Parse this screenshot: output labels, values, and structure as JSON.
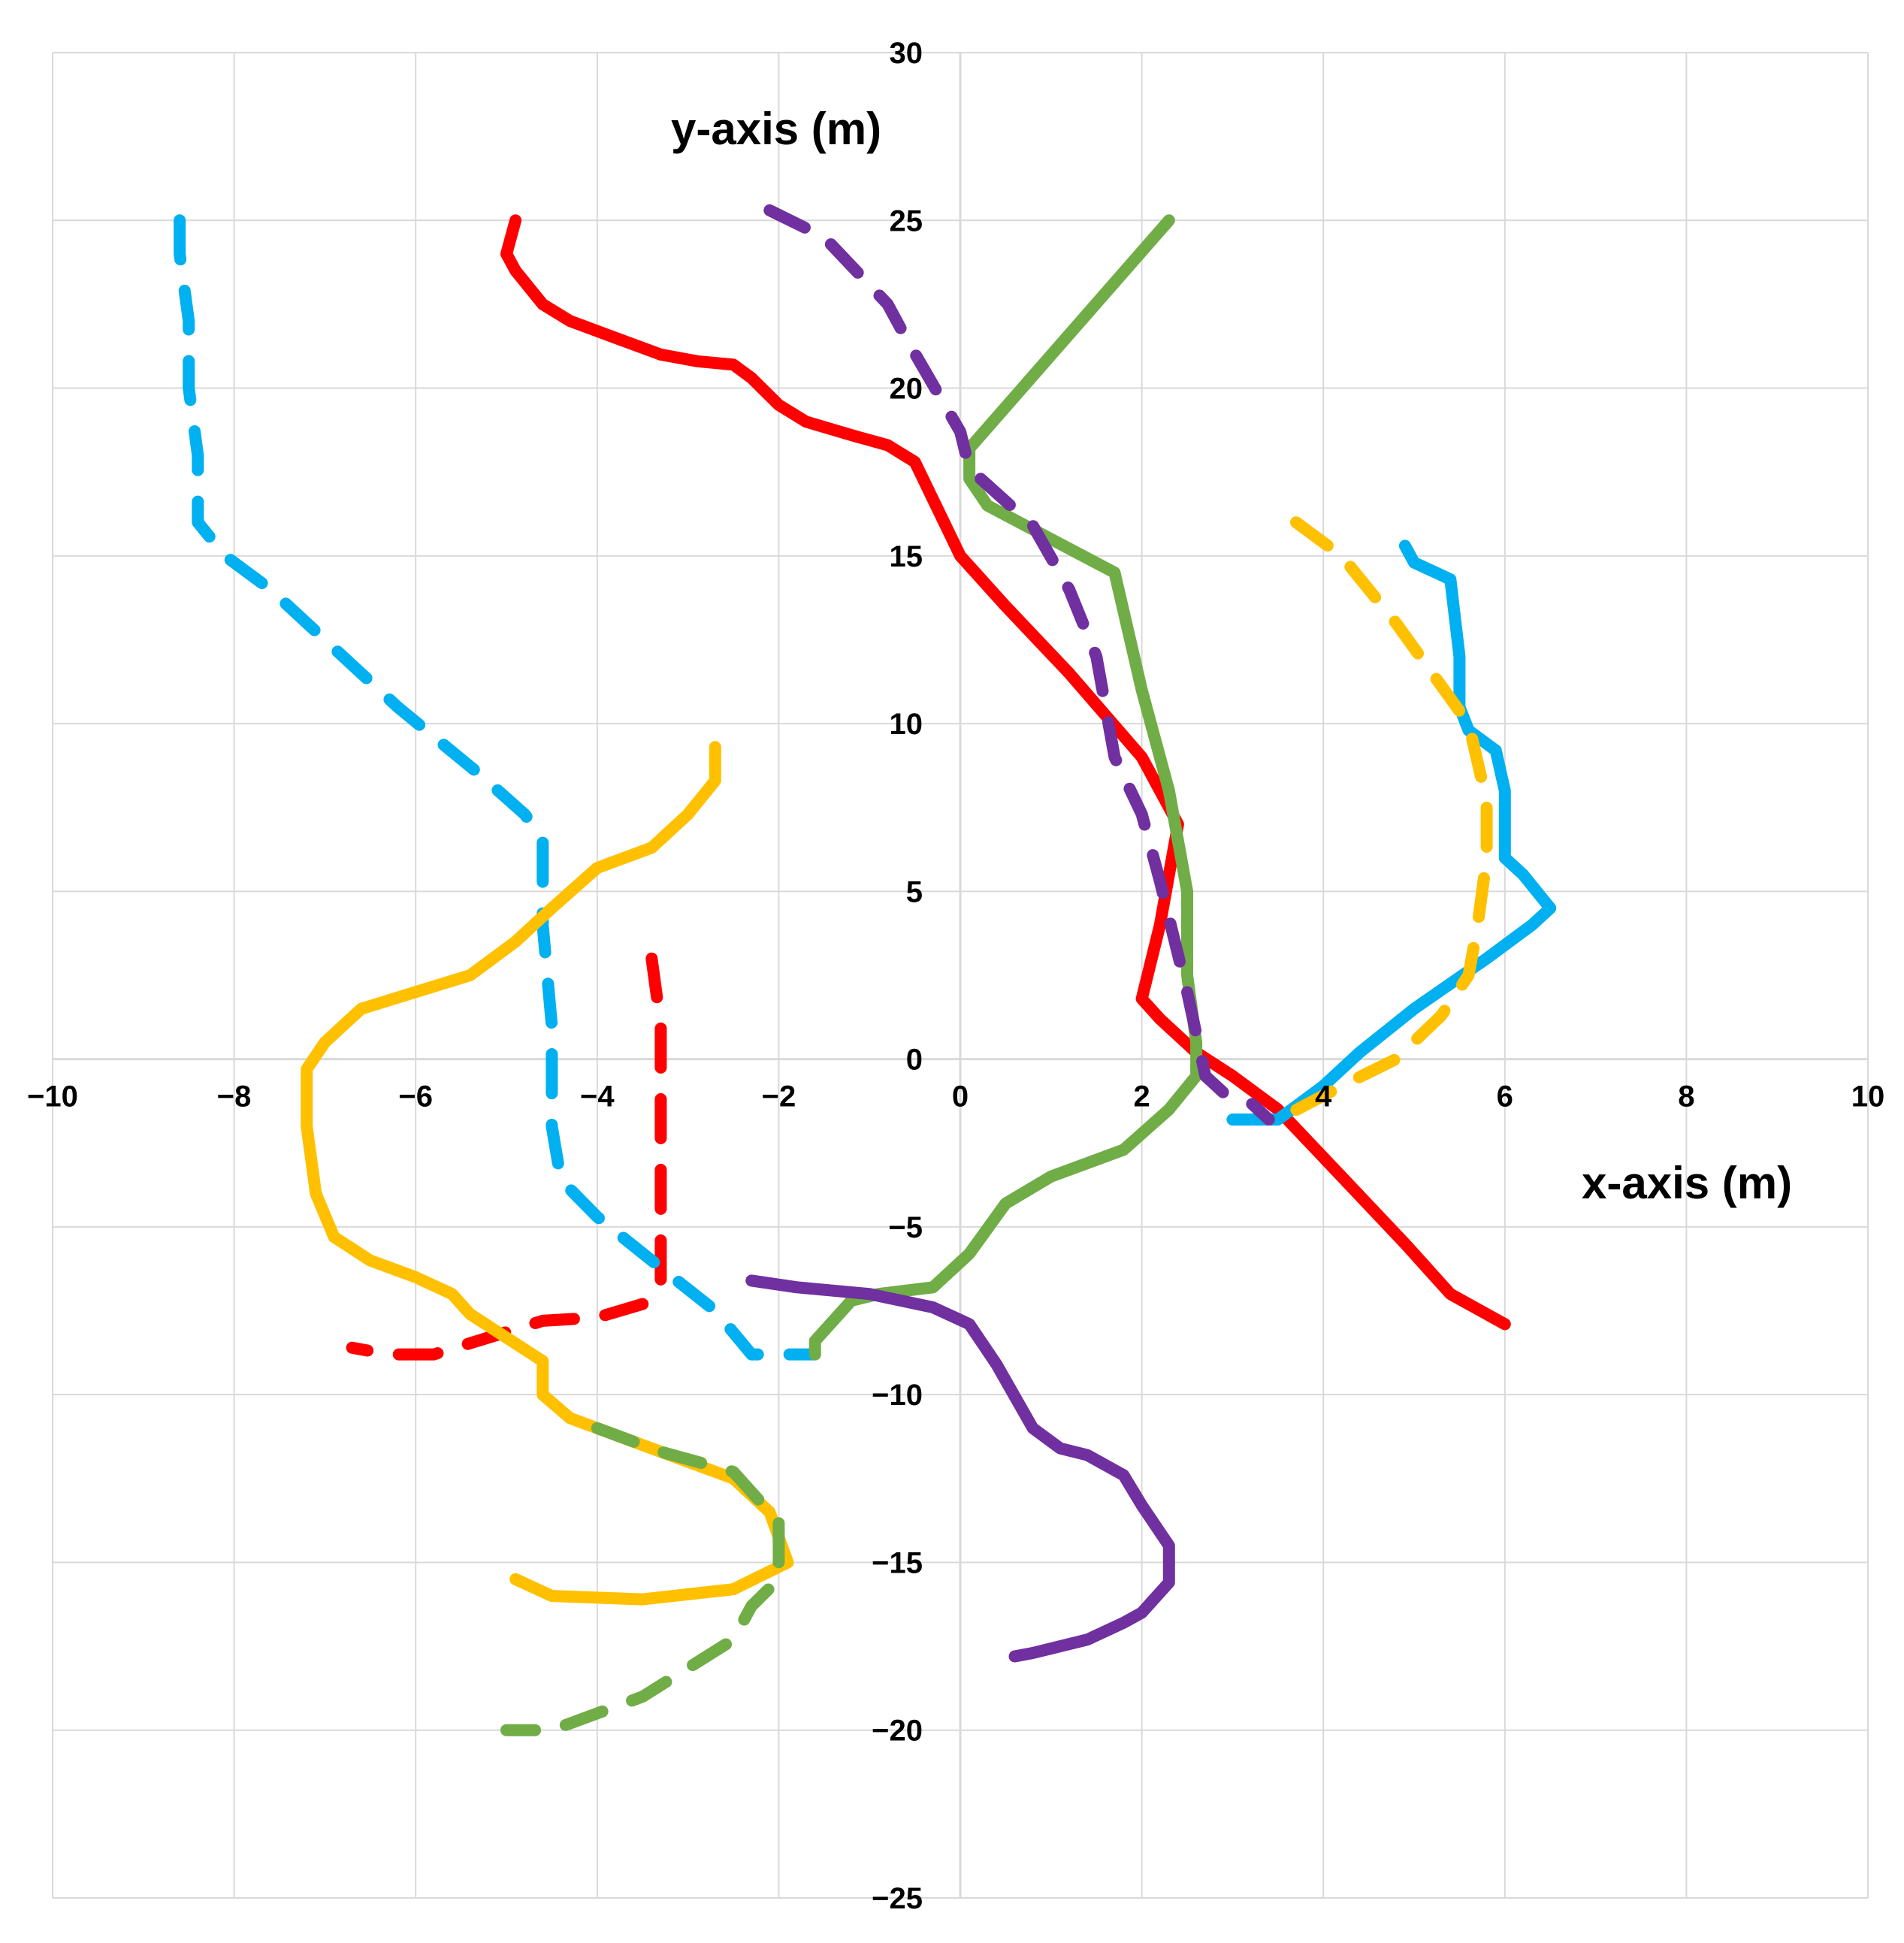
{
  "chart_data": {
    "type": "line",
    "xlabel": "x-axis (m)",
    "ylabel": "y-axis (m)",
    "xlim": [
      -10,
      10
    ],
    "ylim": [
      -25,
      30
    ],
    "x_ticks": [
      -10,
      -8,
      -6,
      -4,
      -2,
      0,
      2,
      4,
      6,
      8,
      10
    ],
    "y_ticks": [
      30,
      25,
      20,
      15,
      10,
      5,
      0,
      -5,
      -10,
      -15,
      -20,
      -25
    ],
    "x_tick_labels": [
      "−10",
      "−8",
      "−6",
      "−4",
      "−2",
      "0",
      "2",
      "4",
      "6",
      "8",
      "10"
    ],
    "y_tick_labels": [
      "30",
      "25",
      "20",
      "15",
      "10",
      "5",
      "0",
      "−5",
      "−10",
      "−15",
      "−20",
      "−25"
    ],
    "grid": true,
    "series": [
      {
        "color": "#ff0000",
        "style": "solid",
        "points": [
          [
            -4.9,
            25
          ],
          [
            -5,
            24
          ],
          [
            -4.9,
            23.5
          ],
          [
            -4.6,
            22.5
          ],
          [
            -4.3,
            22
          ],
          [
            -3.8,
            21.5
          ],
          [
            -3.3,
            21
          ],
          [
            -2.9,
            20.8
          ],
          [
            -2.5,
            20.7
          ],
          [
            -2.3,
            20.3
          ],
          [
            -2.0,
            19.5
          ],
          [
            -1.7,
            19
          ],
          [
            -1.2,
            18.6
          ],
          [
            -0.8,
            18.3
          ],
          [
            -0.5,
            17.8
          ],
          [
            0,
            15
          ],
          [
            0.5,
            13.5
          ],
          [
            1.2,
            11.5
          ],
          [
            2.0,
            9.0
          ],
          [
            2.4,
            7.0
          ],
          [
            2.3,
            5.5
          ],
          [
            2.2,
            4.0
          ],
          [
            2.0,
            1.8
          ],
          [
            2.2,
            1.2
          ],
          [
            2.6,
            0.2
          ],
          [
            3.0,
            -0.5
          ],
          [
            3.5,
            -1.5
          ],
          [
            4.2,
            -3.5
          ],
          [
            4.9,
            -5.5
          ],
          [
            5.4,
            -7.0
          ],
          [
            6.0,
            -7.9
          ]
        ]
      },
      {
        "color": "#ff0000",
        "style": "dashed",
        "points": [
          [
            -3.4,
            3
          ],
          [
            -3.3,
            1
          ],
          [
            -3.3,
            -1
          ],
          [
            -3.3,
            -3.5
          ],
          [
            -3.3,
            -5.5
          ],
          [
            -3.3,
            -6.7
          ],
          [
            -3.5,
            -7.3
          ],
          [
            -4.0,
            -7.7
          ],
          [
            -4.6,
            -7.8
          ],
          [
            -5.2,
            -8.3
          ],
          [
            -5.8,
            -8.8
          ],
          [
            -6.3,
            -8.8
          ],
          [
            -6.7,
            -8.6
          ]
        ]
      },
      {
        "color": "#00b0f0",
        "style": "dashed",
        "points": [
          [
            -8.6,
            25
          ],
          [
            -8.6,
            24
          ],
          [
            -8.5,
            22
          ],
          [
            -8.5,
            20
          ],
          [
            -8.4,
            18
          ],
          [
            -8.4,
            16
          ],
          [
            -8.1,
            15
          ],
          [
            -7.6,
            14
          ],
          [
            -7.0,
            12.5
          ],
          [
            -6.2,
            10.5
          ],
          [
            -5.3,
            8.5
          ],
          [
            -4.8,
            7.3
          ],
          [
            -4.6,
            6.6
          ],
          [
            -4.6,
            4
          ],
          [
            -4.5,
            1
          ],
          [
            -4.5,
            -2
          ],
          [
            -4.4,
            -3.6
          ],
          [
            -4.0,
            -4.7
          ],
          [
            -3.4,
            -6.0
          ],
          [
            -2.7,
            -7.5
          ],
          [
            -2.3,
            -8.8
          ],
          [
            -2.0,
            -8.8
          ],
          [
            -1.6,
            -8.8
          ]
        ]
      },
      {
        "color": "#00b0f0",
        "style": "solid",
        "points": [
          [
            4.9,
            15.3
          ],
          [
            5.0,
            14.8
          ],
          [
            5.4,
            14.3
          ],
          [
            5.5,
            12.0
          ],
          [
            5.5,
            10.5
          ],
          [
            5.6,
            9.8
          ],
          [
            5.9,
            9.2
          ],
          [
            6.0,
            8.0
          ],
          [
            6.0,
            6.0
          ],
          [
            6.2,
            5.5
          ],
          [
            6.5,
            4.5
          ],
          [
            6.3,
            4.0
          ],
          [
            5.8,
            3.0
          ],
          [
            5.0,
            1.5
          ],
          [
            4.4,
            0.2
          ],
          [
            4.0,
            -0.8
          ],
          [
            3.5,
            -1.8
          ],
          [
            3.0,
            -1.8
          ]
        ]
      },
      {
        "color": "#ffc000",
        "style": "solid",
        "points": [
          [
            -2.7,
            9.3
          ],
          [
            -2.7,
            8.3
          ],
          [
            -3.0,
            7.3
          ],
          [
            -3.4,
            6.3
          ],
          [
            -4.0,
            5.7
          ],
          [
            -4.5,
            4.5
          ],
          [
            -4.9,
            3.5
          ],
          [
            -5.4,
            2.5
          ],
          [
            -6.0,
            2.0
          ],
          [
            -6.6,
            1.5
          ],
          [
            -7.0,
            0.5
          ],
          [
            -7.2,
            -0.3
          ],
          [
            -7.2,
            -2.0
          ],
          [
            -7.1,
            -4.0
          ],
          [
            -6.9,
            -5.3
          ],
          [
            -6.5,
            -6.0
          ],
          [
            -6.0,
            -6.5
          ],
          [
            -5.6,
            -7.0
          ],
          [
            -5.4,
            -7.6
          ],
          [
            -5.0,
            -8.3
          ],
          [
            -4.6,
            -9.0
          ],
          [
            -4.6,
            -10.0
          ],
          [
            -4.3,
            -10.7
          ],
          [
            -3.5,
            -11.5
          ],
          [
            -2.5,
            -12.5
          ],
          [
            -2.1,
            -13.5
          ],
          [
            -1.9,
            -15.0
          ],
          [
            -2.5,
            -15.8
          ],
          [
            -3.5,
            -16.1
          ],
          [
            -4.5,
            -16.0
          ],
          [
            -4.9,
            -15.5
          ]
        ]
      },
      {
        "color": "#ffc000",
        "style": "dashed",
        "points": [
          [
            3.7,
            16
          ],
          [
            4.2,
            15
          ],
          [
            4.8,
            13.0
          ],
          [
            5.6,
            10.0
          ],
          [
            5.8,
            7.7
          ],
          [
            5.8,
            6.0
          ],
          [
            5.7,
            4.0
          ],
          [
            5.6,
            2.5
          ],
          [
            5.3,
            1.3
          ],
          [
            4.8,
            0.0
          ],
          [
            4.2,
            -0.8
          ],
          [
            3.5,
            -1.8
          ]
        ]
      },
      {
        "color": "#70ad47",
        "style": "solid",
        "points": [
          [
            2.3,
            25
          ],
          [
            0.1,
            18.2
          ],
          [
            0.1,
            17.3
          ],
          [
            0.3,
            16.5
          ],
          [
            1.0,
            15.5
          ],
          [
            1.7,
            14.5
          ],
          [
            2.0,
            11.0
          ],
          [
            2.3,
            8.0
          ],
          [
            2.5,
            5.0
          ],
          [
            2.5,
            2.5
          ],
          [
            2.6,
            0.5
          ],
          [
            2.6,
            -0.5
          ],
          [
            2.3,
            -1.5
          ],
          [
            1.8,
            -2.7
          ],
          [
            1.0,
            -3.5
          ],
          [
            0.5,
            -4.3
          ],
          [
            0.1,
            -5.8
          ],
          [
            -0.3,
            -6.8
          ],
          [
            -0.9,
            -7.0
          ],
          [
            -1.2,
            -7.2
          ],
          [
            -1.6,
            -8.4
          ],
          [
            -1.6,
            -8.8
          ]
        ]
      },
      {
        "color": "#70ad47",
        "style": "dashed",
        "points": [
          [
            -4.0,
            -11.0
          ],
          [
            -3.3,
            -11.7
          ],
          [
            -2.5,
            -12.3
          ],
          [
            -2.0,
            -13.8
          ],
          [
            -2.0,
            -15.5
          ],
          [
            -2.3,
            -16.3
          ],
          [
            -2.5,
            -17.3
          ],
          [
            -3.5,
            -19.0
          ],
          [
            -4.0,
            -19.5
          ],
          [
            -4.5,
            -20.0
          ],
          [
            -5.0,
            -20.0
          ]
        ]
      },
      {
        "color": "#7030a0",
        "style": "dashed",
        "points": [
          [
            -2.1,
            25.3
          ],
          [
            -1.5,
            24.5
          ],
          [
            -0.8,
            22.5
          ],
          [
            -0.6,
            21.5
          ],
          [
            0.0,
            18.7
          ],
          [
            0.1,
            17.6
          ],
          [
            0.8,
            15.9
          ],
          [
            1.2,
            14.0
          ],
          [
            1.5,
            12.0
          ],
          [
            1.7,
            9.0
          ],
          [
            2.0,
            7.3
          ],
          [
            2.2,
            5.3
          ],
          [
            2.5,
            2.0
          ],
          [
            2.7,
            -0.5
          ],
          [
            2.9,
            -1.0
          ],
          [
            3.2,
            -1.3
          ],
          [
            3.4,
            -1.8
          ]
        ]
      },
      {
        "color": "#7030a0",
        "style": "solid",
        "points": [
          [
            -2.3,
            -6.6
          ],
          [
            -1.8,
            -6.8
          ],
          [
            -1.0,
            -7.0
          ],
          [
            -0.3,
            -7.4
          ],
          [
            0.1,
            -7.9
          ],
          [
            0.4,
            -9.1
          ],
          [
            0.8,
            -11.0
          ],
          [
            1.1,
            -11.6
          ],
          [
            1.4,
            -11.8
          ],
          [
            1.8,
            -12.4
          ],
          [
            2.0,
            -13.3
          ],
          [
            2.3,
            -14.5
          ],
          [
            2.3,
            -15.6
          ],
          [
            2.0,
            -16.5
          ],
          [
            1.8,
            -16.8
          ],
          [
            1.4,
            -17.3
          ],
          [
            0.8,
            -17.7
          ],
          [
            0.6,
            -17.8
          ]
        ]
      }
    ]
  }
}
